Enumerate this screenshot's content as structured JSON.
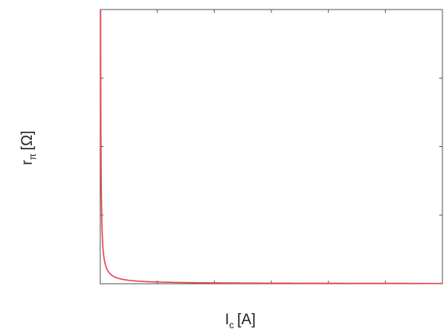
{
  "chart_data": {
    "type": "line",
    "xlabel": "I",
    "xlabel_subscript": "c",
    "xlabel_unit": "[A]",
    "ylabel": "r",
    "ylabel_subscript": "π",
    "ylabel_unit": "[Ω]",
    "grid": false,
    "x_tick_count": 7,
    "y_tick_count": 4,
    "series": [
      {
        "color": "#e8464b",
        "points": [
          [
            0.01,
            90.0
          ],
          [
            0.02,
            45.0
          ],
          [
            0.03,
            30.0
          ],
          [
            0.05,
            18.0
          ],
          [
            0.08,
            11.25
          ],
          [
            0.12,
            7.5
          ],
          [
            0.18,
            5.0
          ],
          [
            0.25,
            3.6
          ],
          [
            0.35,
            2.57
          ],
          [
            0.5,
            1.8
          ],
          [
            0.7,
            1.29
          ],
          [
            1.0,
            0.9
          ],
          [
            1.4,
            0.64
          ],
          [
            2.0,
            0.45
          ],
          [
            2.8,
            0.32
          ],
          [
            3.8,
            0.24
          ],
          [
            5.0,
            0.18
          ],
          [
            6.5,
            0.14
          ],
          [
            8.0,
            0.11
          ],
          [
            9.6,
            0.09
          ]
        ]
      }
    ],
    "xlim": [
      0,
      9.6
    ],
    "ylim": [
      0,
      90
    ]
  }
}
